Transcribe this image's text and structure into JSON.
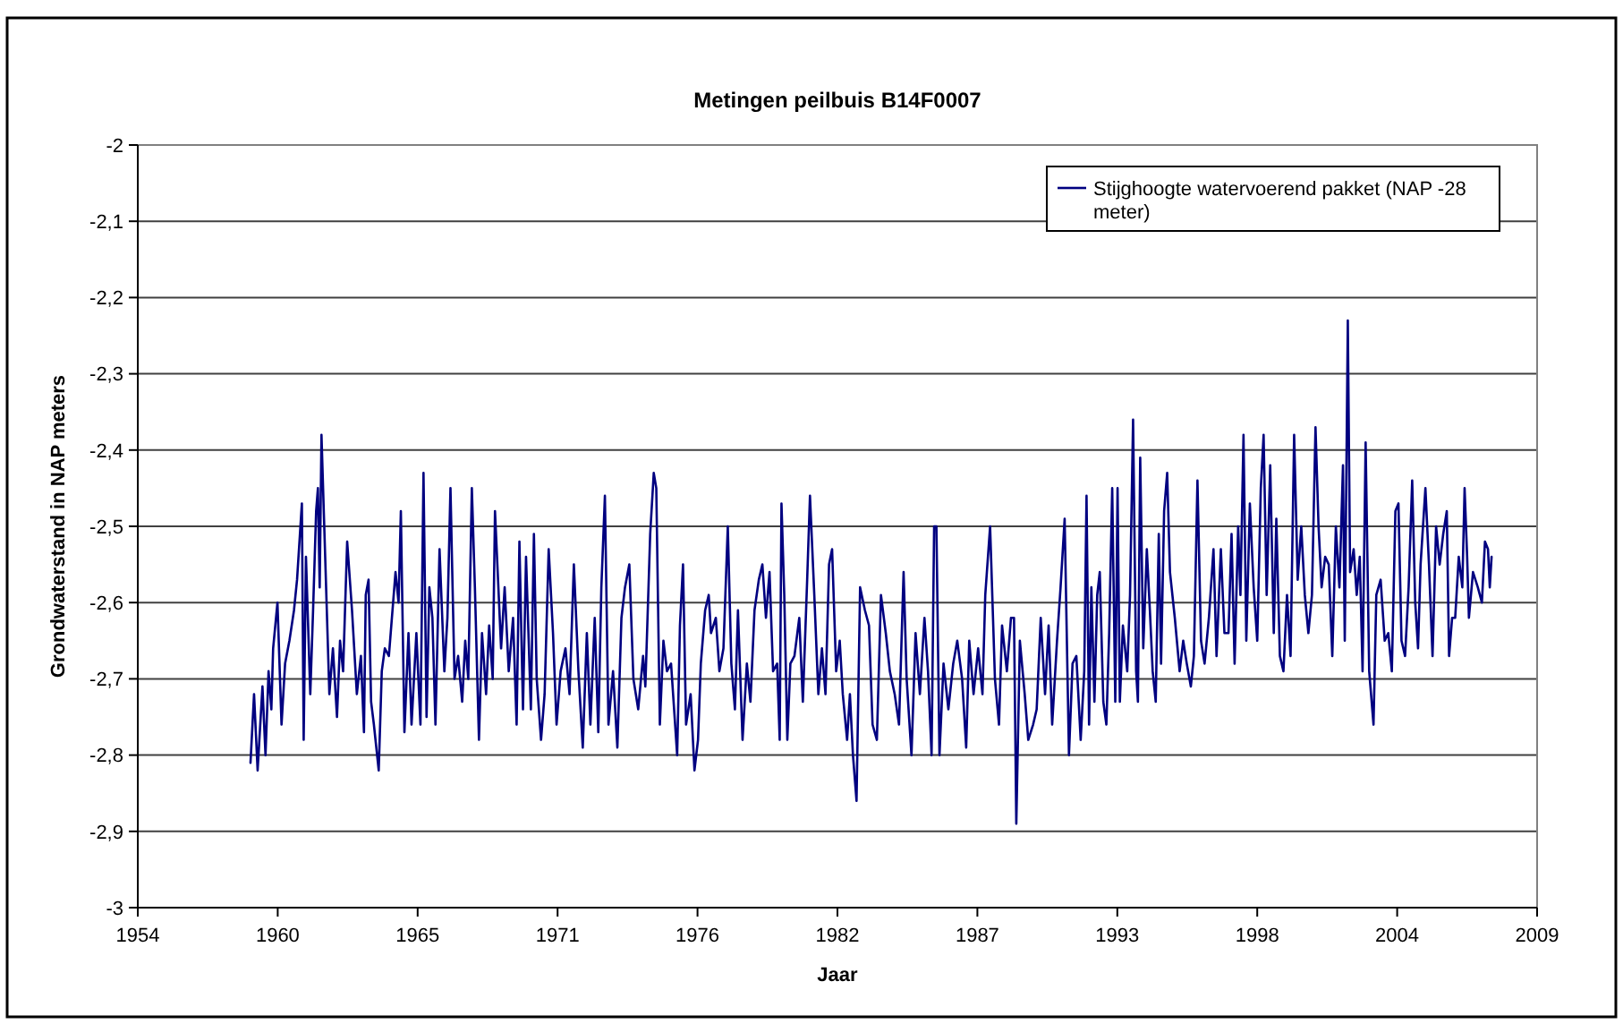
{
  "chart_data": {
    "type": "line",
    "title": "Metingen peilbuis B14F0007",
    "xlabel": "Jaar",
    "ylabel": "Grondwaterstand in NAP meters",
    "xlim": [
      1954,
      2009
    ],
    "xticks": [
      {
        "value": 1954,
        "label": "1954"
      },
      {
        "value": 1959.5,
        "label": "1960"
      },
      {
        "value": 1965,
        "label": "1965"
      },
      {
        "value": 1970.5,
        "label": "1971"
      },
      {
        "value": 1976,
        "label": "1976"
      },
      {
        "value": 1981.5,
        "label": "1982"
      },
      {
        "value": 1987,
        "label": "1987"
      },
      {
        "value": 1992.5,
        "label": "1993"
      },
      {
        "value": 1998,
        "label": "1998"
      },
      {
        "value": 2003.5,
        "label": "2004"
      },
      {
        "value": 2009,
        "label": "2009"
      }
    ],
    "ylim": [
      -3,
      -2
    ],
    "yticks": [
      -3,
      {
        "value": -2.9,
        "label": "-2,9"
      },
      {
        "value": -2.8,
        "label": "-2,8"
      },
      {
        "value": -2.7,
        "label": "-2,7"
      },
      {
        "value": -2.6,
        "label": "-2,6"
      },
      {
        "value": -2.5,
        "label": "-2,5"
      },
      {
        "value": -2.4,
        "label": "-2,4"
      },
      {
        "value": -2.3,
        "label": "-2,3"
      },
      {
        "value": -2.2,
        "label": "-2,2"
      },
      {
        "value": -2.1,
        "label": "-2,1"
      },
      -2
    ],
    "grid": "y",
    "legend": "top right",
    "marker": "none",
    "line_style": "solid",
    "series": [
      {
        "name": "Stijghoogte watervoerend pakket (NAP -28 meter)",
        "color": "#000080",
        "x": [
          1958.43,
          1958.57,
          1958.71,
          1958.9,
          1959.02,
          1959.14,
          1959.25,
          1959.32,
          1959.49,
          1959.65,
          1959.79,
          1959.96,
          1960.14,
          1960.26,
          1960.45,
          1960.52,
          1960.61,
          1960.78,
          1960.89,
          1961.01,
          1961.08,
          1961.15,
          1961.22,
          1961.32,
          1961.53,
          1961.67,
          1961.83,
          1961.95,
          1962.07,
          1962.23,
          1962.42,
          1962.61,
          1962.77,
          1962.89,
          1962.96,
          1963.07,
          1963.17,
          1963.28,
          1963.47,
          1963.59,
          1963.71,
          1963.87,
          1964.13,
          1964.25,
          1964.34,
          1964.48,
          1964.64,
          1964.76,
          1964.95,
          1965.11,
          1965.23,
          1965.35,
          1965.46,
          1965.58,
          1965.7,
          1965.86,
          1966.05,
          1966.17,
          1966.29,
          1966.45,
          1966.59,
          1966.75,
          1966.87,
          1966.99,
          1967.13,
          1967.25,
          1967.41,
          1967.53,
          1967.69,
          1967.81,
          1967.95,
          1968.04,
          1968.28,
          1968.42,
          1968.58,
          1968.75,
          1968.89,
          1969.0,
          1969.14,
          1969.26,
          1969.45,
          1969.57,
          1969.68,
          1969.85,
          1969.99,
          1970.15,
          1970.32,
          1970.46,
          1970.62,
          1970.81,
          1970.97,
          1971.14,
          1971.32,
          1971.49,
          1971.65,
          1971.79,
          1971.96,
          1972.1,
          1972.22,
          1972.36,
          1972.5,
          1972.68,
          1972.85,
          1973.01,
          1973.15,
          1973.32,
          1973.48,
          1973.67,
          1973.86,
          1973.95,
          1974.14,
          1974.28,
          1974.38,
          1974.52,
          1974.66,
          1974.8,
          1974.96,
          1975.2,
          1975.31,
          1975.43,
          1975.55,
          1975.73,
          1975.88,
          1976.02,
          1976.13,
          1976.3,
          1976.44,
          1976.53,
          1976.72,
          1976.86,
          1977.02,
          1977.19,
          1977.33,
          1977.47,
          1977.59,
          1977.77,
          1977.94,
          1978.08,
          1978.24,
          1978.41,
          1978.55,
          1978.69,
          1978.83,
          1978.97,
          1979.13,
          1979.23,
          1979.3,
          1979.41,
          1979.53,
          1979.65,
          1979.81,
          1980.0,
          1980.14,
          1980.31,
          1980.42,
          1980.59,
          1980.75,
          1980.89,
          1981.03,
          1981.17,
          1981.29,
          1981.45,
          1981.59,
          1981.71,
          1981.88,
          1981.99,
          1982.11,
          1982.25,
          1982.39,
          1982.58,
          1982.74,
          1982.88,
          1983.05,
          1983.21,
          1983.4,
          1983.56,
          1983.75,
          1983.92,
          1984.1,
          1984.22,
          1984.41,
          1984.57,
          1984.74,
          1984.92,
          1985.06,
          1985.2,
          1985.3,
          1985.39,
          1985.51,
          1985.67,
          1985.86,
          1986.05,
          1986.21,
          1986.4,
          1986.56,
          1986.68,
          1986.85,
          1987.03,
          1987.2,
          1987.31,
          1987.5,
          1987.69,
          1987.85,
          1987.97,
          1988.16,
          1988.32,
          1988.44,
          1988.53,
          1988.67,
          1988.86,
          1989.0,
          1989.19,
          1989.33,
          1989.49,
          1989.66,
          1989.8,
          1989.94,
          1990.13,
          1990.27,
          1990.43,
          1990.6,
          1990.74,
          1990.89,
          1991.06,
          1991.2,
          1991.29,
          1991.39,
          1991.48,
          1991.6,
          1991.71,
          1991.81,
          1991.95,
          1992.07,
          1992.18,
          1992.3,
          1992.42,
          1992.51,
          1992.6,
          1992.72,
          1992.89,
          1993.0,
          1993.12,
          1993.24,
          1993.31,
          1993.4,
          1993.52,
          1993.66,
          1993.78,
          1993.89,
          1994.01,
          1994.13,
          1994.22,
          1994.34,
          1994.46,
          1994.57,
          1994.76,
          1994.95,
          1995.09,
          1995.23,
          1995.39,
          1995.51,
          1995.65,
          1995.79,
          1995.93,
          1996.1,
          1996.28,
          1996.4,
          1996.57,
          1996.71,
          1996.87,
          1996.99,
          1997.11,
          1997.25,
          1997.34,
          1997.46,
          1997.57,
          1997.71,
          1997.86,
          1998.0,
          1998.14,
          1998.25,
          1998.37,
          1998.51,
          1998.65,
          1998.75,
          1998.89,
          1999.03,
          1999.17,
          1999.31,
          1999.45,
          1999.59,
          1999.73,
          1999.87,
          2000.01,
          2000.15,
          2000.29,
          2000.41,
          2000.53,
          2000.67,
          2000.81,
          2000.95,
          2001.09,
          2001.23,
          2001.37,
          2001.44,
          2001.56,
          2001.65,
          2001.79,
          2001.91,
          2002.03,
          2002.14,
          2002.26,
          2002.4,
          2002.57,
          2002.68,
          2002.85,
          2003.01,
          2003.15,
          2003.29,
          2003.43,
          2003.55,
          2003.67,
          2003.81,
          2003.95,
          2004.09,
          2004.21,
          2004.32,
          2004.42,
          2004.61,
          2004.75,
          2004.89,
          2005.03,
          2005.17,
          2005.31,
          2005.45,
          2005.54,
          2005.66,
          2005.78,
          2005.92,
          2006.06,
          2006.15,
          2006.25,
          2006.32,
          2006.48,
          2006.67,
          2006.83,
          2006.95,
          2007.07,
          2007.14,
          2007.21
        ],
        "values": [
          -2.81,
          -2.72,
          -2.82,
          -2.71,
          -2.8,
          -2.69,
          -2.74,
          -2.66,
          -2.6,
          -2.76,
          -2.68,
          -2.65,
          -2.61,
          -2.57,
          -2.47,
          -2.78,
          -2.54,
          -2.72,
          -2.61,
          -2.48,
          -2.45,
          -2.58,
          -2.38,
          -2.49,
          -2.72,
          -2.66,
          -2.75,
          -2.65,
          -2.69,
          -2.52,
          -2.61,
          -2.72,
          -2.67,
          -2.77,
          -2.59,
          -2.57,
          -2.73,
          -2.76,
          -2.82,
          -2.69,
          -2.66,
          -2.67,
          -2.56,
          -2.6,
          -2.48,
          -2.77,
          -2.64,
          -2.76,
          -2.64,
          -2.76,
          -2.43,
          -2.75,
          -2.58,
          -2.62,
          -2.76,
          -2.53,
          -2.69,
          -2.62,
          -2.45,
          -2.7,
          -2.67,
          -2.73,
          -2.65,
          -2.7,
          -2.45,
          -2.58,
          -2.78,
          -2.64,
          -2.72,
          -2.63,
          -2.7,
          -2.48,
          -2.66,
          -2.58,
          -2.69,
          -2.62,
          -2.76,
          -2.52,
          -2.74,
          -2.54,
          -2.74,
          -2.51,
          -2.7,
          -2.78,
          -2.72,
          -2.53,
          -2.64,
          -2.76,
          -2.69,
          -2.66,
          -2.72,
          -2.55,
          -2.69,
          -2.79,
          -2.64,
          -2.76,
          -2.62,
          -2.77,
          -2.58,
          -2.46,
          -2.76,
          -2.69,
          -2.79,
          -2.62,
          -2.58,
          -2.55,
          -2.7,
          -2.74,
          -2.67,
          -2.71,
          -2.51,
          -2.43,
          -2.45,
          -2.76,
          -2.65,
          -2.69,
          -2.68,
          -2.8,
          -2.63,
          -2.55,
          -2.76,
          -2.72,
          -2.82,
          -2.78,
          -2.68,
          -2.61,
          -2.59,
          -2.64,
          -2.62,
          -2.69,
          -2.66,
          -2.5,
          -2.68,
          -2.74,
          -2.61,
          -2.78,
          -2.68,
          -2.73,
          -2.61,
          -2.57,
          -2.55,
          -2.62,
          -2.56,
          -2.69,
          -2.68,
          -2.78,
          -2.47,
          -2.59,
          -2.78,
          -2.68,
          -2.67,
          -2.62,
          -2.73,
          -2.57,
          -2.46,
          -2.59,
          -2.72,
          -2.66,
          -2.72,
          -2.55,
          -2.53,
          -2.69,
          -2.65,
          -2.72,
          -2.78,
          -2.72,
          -2.8,
          -2.86,
          -2.58,
          -2.61,
          -2.63,
          -2.76,
          -2.78,
          -2.59,
          -2.64,
          -2.69,
          -2.72,
          -2.76,
          -2.56,
          -2.7,
          -2.8,
          -2.64,
          -2.72,
          -2.62,
          -2.69,
          -2.8,
          -2.5,
          -2.5,
          -2.8,
          -2.68,
          -2.74,
          -2.68,
          -2.65,
          -2.7,
          -2.79,
          -2.65,
          -2.72,
          -2.66,
          -2.72,
          -2.59,
          -2.5,
          -2.7,
          -2.76,
          -2.63,
          -2.69,
          -2.62,
          -2.62,
          -2.89,
          -2.65,
          -2.72,
          -2.78,
          -2.76,
          -2.74,
          -2.62,
          -2.72,
          -2.63,
          -2.76,
          -2.65,
          -2.58,
          -2.49,
          -2.8,
          -2.68,
          -2.67,
          -2.78,
          -2.69,
          -2.46,
          -2.76,
          -2.58,
          -2.73,
          -2.59,
          -2.56,
          -2.73,
          -2.76,
          -2.64,
          -2.45,
          -2.73,
          -2.45,
          -2.73,
          -2.63,
          -2.69,
          -2.59,
          -2.36,
          -2.69,
          -2.73,
          -2.41,
          -2.66,
          -2.53,
          -2.61,
          -2.69,
          -2.73,
          -2.51,
          -2.68,
          -2.48,
          -2.43,
          -2.56,
          -2.62,
          -2.69,
          -2.65,
          -2.68,
          -2.71,
          -2.67,
          -2.44,
          -2.65,
          -2.68,
          -2.62,
          -2.53,
          -2.67,
          -2.53,
          -2.64,
          -2.64,
          -2.51,
          -2.68,
          -2.5,
          -2.59,
          -2.38,
          -2.65,
          -2.47,
          -2.58,
          -2.65,
          -2.45,
          -2.38,
          -2.59,
          -2.42,
          -2.64,
          -2.49,
          -2.67,
          -2.69,
          -2.59,
          -2.67,
          -2.38,
          -2.57,
          -2.5,
          -2.59,
          -2.64,
          -2.59,
          -2.37,
          -2.5,
          -2.58,
          -2.54,
          -2.55,
          -2.67,
          -2.5,
          -2.58,
          -2.42,
          -2.65,
          -2.23,
          -2.56,
          -2.53,
          -2.59,
          -2.54,
          -2.69,
          -2.39,
          -2.69,
          -2.76,
          -2.59,
          -2.57,
          -2.65,
          -2.64,
          -2.69,
          -2.48,
          -2.47,
          -2.65,
          -2.67,
          -2.58,
          -2.44,
          -2.6,
          -2.66,
          -2.55,
          -2.45,
          -2.55,
          -2.67,
          -2.5,
          -2.55,
          -2.51,
          -2.48,
          -2.67,
          -2.62,
          -2.62,
          -2.54,
          -2.58,
          -2.45,
          -2.54,
          -2.62,
          -2.56,
          -2.58,
          -2.6,
          -2.52,
          -2.53,
          -2.58,
          -2.54
        ]
      }
    ]
  }
}
